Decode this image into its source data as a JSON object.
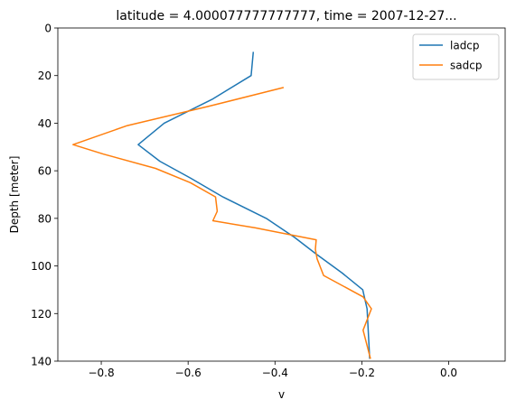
{
  "chart_data": {
    "type": "line",
    "title": "latitude = 4.000077777777777, time = 2007-12-27...",
    "xlabel": "v",
    "ylabel": "Depth [meter]",
    "xlim": [
      -0.9,
      0.13
    ],
    "ylim": [
      140,
      0
    ],
    "y_inverted": true,
    "xticks": [
      -0.8,
      -0.6,
      -0.4,
      -0.2,
      0.0
    ],
    "xtick_labels": [
      "−0.8",
      "−0.6",
      "−0.4",
      "−0.2",
      "0.0"
    ],
    "yticks": [
      0,
      20,
      40,
      60,
      80,
      100,
      120,
      140
    ],
    "ytick_labels": [
      "0",
      "20",
      "40",
      "60",
      "80",
      "100",
      "120",
      "140"
    ],
    "grid": false,
    "legend_position": "top-right",
    "series": [
      {
        "name": "ladcp",
        "color": "#1f77b4",
        "x": [
          -0.45,
          -0.455,
          -0.545,
          -0.655,
          -0.715,
          -0.665,
          -0.595,
          -0.52,
          -0.42,
          -0.355,
          -0.305,
          -0.245,
          -0.198,
          -0.188,
          -0.185,
          -0.182
        ],
        "y": [
          10,
          20,
          30,
          40,
          49,
          56,
          63,
          71,
          80,
          88,
          95,
          103,
          110,
          118,
          128,
          139
        ]
      },
      {
        "name": "sadcp",
        "color": "#ff7f0e",
        "x": [
          -0.38,
          -0.555,
          -0.74,
          -0.865,
          -0.795,
          -0.675,
          -0.595,
          -0.537,
          -0.533,
          -0.543,
          -0.445,
          -0.305,
          -0.307,
          -0.303,
          -0.288,
          -0.197,
          -0.178,
          -0.197,
          -0.18
        ],
        "y": [
          25,
          33,
          41,
          49,
          53,
          59,
          65,
          71,
          77,
          81,
          84,
          89,
          93,
          97,
          104,
          113,
          118,
          127,
          139
        ]
      }
    ]
  }
}
